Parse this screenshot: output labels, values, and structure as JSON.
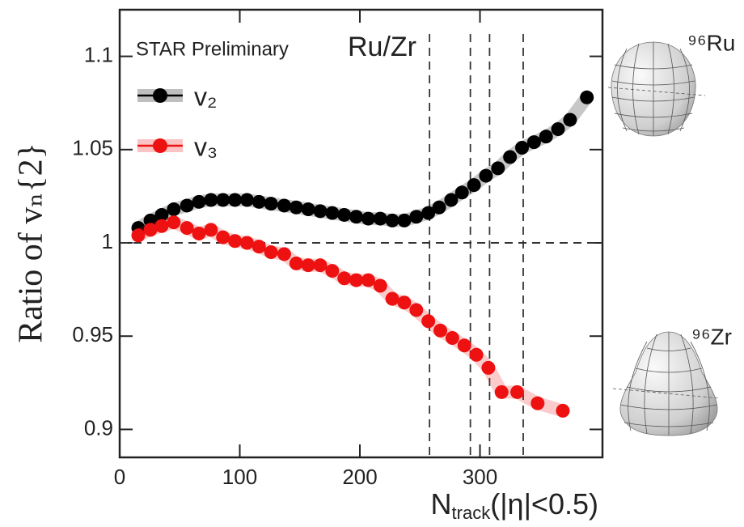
{
  "chart_data": {
    "type": "scatter",
    "annotations": [
      "STAR Preliminary",
      "Ru/Zr"
    ],
    "ylabel": "Ratio of vₙ{2}",
    "xlabel_parts": [
      "N",
      "track",
      "(|η|<0.5)"
    ],
    "nuclei_labels": [
      "⁹⁶Ru",
      "⁹⁶Zr"
    ],
    "xlim": [
      0,
      402
    ],
    "ylim": [
      0.885,
      1.125
    ],
    "xticks": [
      0,
      100,
      200,
      300
    ],
    "yticks": [
      0.9,
      0.95,
      1,
      1.05,
      1.1
    ],
    "reference_x": [
      258,
      292,
      308,
      336
    ],
    "reference_y": 1,
    "legend": "top-left",
    "series": [
      {
        "name": "v₂",
        "color": "#000000",
        "x": [
          15.5,
          25.6,
          35,
          45,
          56,
          66,
          76,
          86,
          96,
          106,
          116,
          126,
          137,
          147,
          157,
          167,
          177,
          187,
          197,
          207,
          217,
          227,
          237,
          247,
          257,
          266,
          276,
          285,
          295,
          305,
          315,
          325,
          335,
          345,
          355,
          365,
          375,
          389
        ],
        "values": [
          1.008,
          1.012,
          1.015,
          1.018,
          1.02,
          1.022,
          1.023,
          1.023,
          1.023,
          1.023,
          1.022,
          1.021,
          1.02,
          1.019,
          1.018,
          1.017,
          1.016,
          1.015,
          1.014,
          1.013,
          1.013,
          1.012,
          1.012,
          1.014,
          1.016,
          1.019,
          1.023,
          1.027,
          1.031,
          1.036,
          1.04,
          1.046,
          1.051,
          1.054,
          1.057,
          1.061,
          1.066,
          1.078
        ]
      },
      {
        "name": "v₃",
        "color": "#ee1111",
        "x": [
          15.5,
          25.6,
          35,
          45,
          56,
          66,
          76,
          86,
          96,
          106,
          116,
          126,
          137,
          147,
          157,
          167,
          177,
          187,
          197,
          207,
          217,
          227,
          237,
          247,
          257,
          267,
          277,
          287,
          297,
          307,
          318,
          331,
          348,
          369
        ],
        "values": [
          1.004,
          1.007,
          1.009,
          1.011,
          1.008,
          1.005,
          1.007,
          1.003,
          1.001,
          1.0,
          0.998,
          0.995,
          0.994,
          0.989,
          0.988,
          0.988,
          0.985,
          0.981,
          0.98,
          0.98,
          0.977,
          0.97,
          0.968,
          0.964,
          0.958,
          0.953,
          0.949,
          0.945,
          0.94,
          0.933,
          0.92,
          0.92,
          0.914,
          0.91
        ]
      }
    ]
  }
}
